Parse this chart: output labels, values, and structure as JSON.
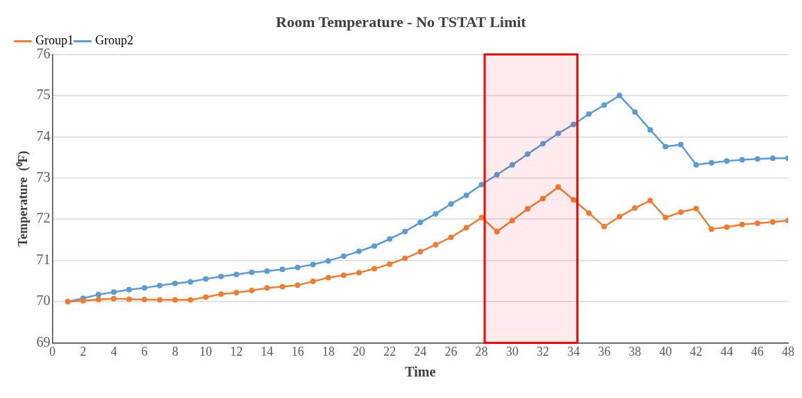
{
  "chart_data": {
    "type": "line",
    "title": "Room Temperature - No TSTAT Limit",
    "xlabel": "Time",
    "ylabel": "Temperature  (⁰F)",
    "x": [
      1,
      2,
      3,
      4,
      5,
      6,
      7,
      8,
      9,
      10,
      11,
      12,
      13,
      14,
      15,
      16,
      17,
      18,
      19,
      20,
      21,
      22,
      23,
      24,
      25,
      26,
      27,
      28,
      29,
      30,
      31,
      32,
      33,
      34,
      35,
      36,
      37,
      38,
      39,
      40,
      41,
      42,
      43,
      44,
      45,
      46,
      47,
      48
    ],
    "series": [
      {
        "name": "Group1",
        "color": "#ed7d31",
        "values": [
          70.0,
          70.02,
          70.05,
          70.07,
          70.06,
          70.05,
          70.04,
          70.04,
          70.04,
          70.11,
          70.18,
          70.22,
          70.27,
          70.33,
          70.36,
          70.4,
          70.49,
          70.58,
          70.64,
          70.7,
          70.8,
          70.91,
          71.05,
          71.21,
          71.38,
          71.56,
          71.79,
          72.04,
          71.7,
          71.97,
          72.25,
          72.5,
          72.78,
          72.47,
          72.15,
          71.82,
          72.06,
          72.27,
          72.45,
          72.04,
          72.17,
          72.26,
          71.76,
          71.81,
          71.87,
          71.9,
          71.93,
          71.97
        ]
      },
      {
        "name": "Group2",
        "color": "#5b9bd5",
        "values": [
          70.0,
          70.08,
          70.17,
          70.23,
          70.29,
          70.33,
          70.39,
          70.44,
          70.48,
          70.55,
          70.61,
          70.66,
          70.71,
          70.74,
          70.78,
          70.83,
          70.9,
          70.99,
          71.1,
          71.22,
          71.35,
          71.52,
          71.7,
          71.92,
          72.13,
          72.37,
          72.58,
          72.84,
          73.08,
          73.32,
          73.58,
          73.83,
          74.08,
          74.3,
          74.55,
          74.77,
          75.0,
          74.6,
          74.17,
          73.76,
          73.81,
          73.32,
          73.37,
          73.41,
          73.44,
          73.46,
          73.48,
          73.48
        ]
      }
    ],
    "xlim": [
      0,
      48
    ],
    "xticks": [
      0,
      2,
      4,
      6,
      8,
      10,
      12,
      14,
      16,
      18,
      20,
      22,
      24,
      26,
      28,
      30,
      32,
      34,
      36,
      38,
      40,
      42,
      44,
      46,
      48
    ],
    "ylim": [
      69,
      76
    ],
    "yticks": [
      69,
      70,
      71,
      72,
      73,
      74,
      75,
      76
    ],
    "bands": [
      {
        "axis": "x",
        "from": 28.2,
        "to": 34.25,
        "color": "#ff0000"
      }
    ],
    "grid": "y",
    "legend": "top left",
    "marker": "circle",
    "line_style": "solid"
  }
}
